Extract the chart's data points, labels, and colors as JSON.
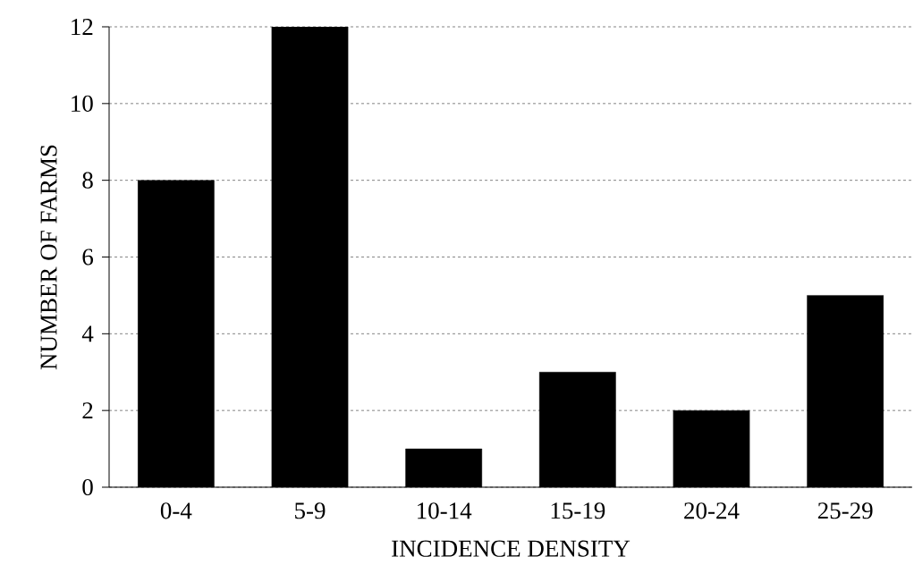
{
  "chart_data": {
    "type": "bar",
    "xlabel": "INCIDENCE DENSITY",
    "ylabel": "NUMBER OF FARMS",
    "categories": [
      "0-4",
      "5-9",
      "10-14",
      "15-19",
      "20-24",
      "25-29"
    ],
    "values": [
      8,
      12,
      1,
      3,
      2,
      5
    ],
    "color": "#000000",
    "ylim": [
      0,
      12
    ],
    "yticks": [
      0,
      2,
      4,
      6,
      8,
      10,
      12
    ],
    "grid": "y"
  }
}
